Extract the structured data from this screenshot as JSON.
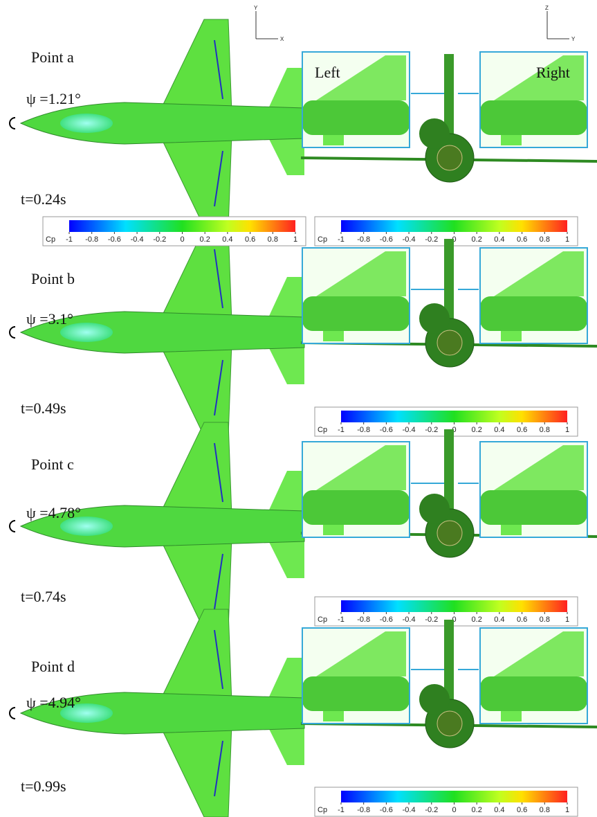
{
  "axes_top_view": {
    "vertical": "Y",
    "horizontal": "X"
  },
  "axes_front_view": {
    "vertical": "Z",
    "horizontal": "Y"
  },
  "inset_labels": {
    "left": "Left",
    "right": "Right"
  },
  "colorbar": {
    "label": "Cp",
    "ticks": [
      -1,
      -0.8,
      -0.6,
      -0.4,
      -0.2,
      0,
      0.2,
      0.4,
      0.6,
      0.8,
      1
    ]
  },
  "panels": [
    {
      "label": "Point a",
      "psi": "ψ =1.21°",
      "time": "t=0.24s"
    },
    {
      "label": "Point b",
      "psi": "ψ =3.1°",
      "time": "t=0.49s"
    },
    {
      "label": "Point c",
      "psi": "ψ =4.78°",
      "time": "t=0.74s"
    },
    {
      "label": "Point d",
      "psi": "ψ =4.94°",
      "time": "t=0.99s"
    }
  ]
}
